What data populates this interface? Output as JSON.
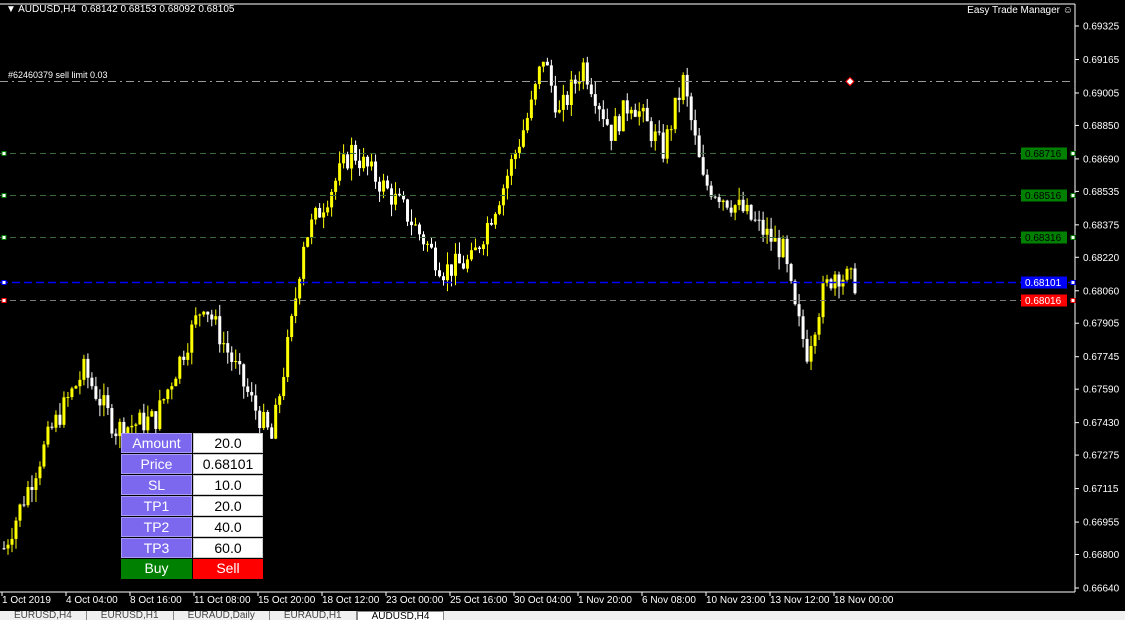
{
  "header": {
    "symbol": "AUDUSD,H4",
    "open": "0.68142",
    "high": "0.68153",
    "low": "0.68092",
    "close": "0.68105"
  },
  "indicator_title": "Easy Trade Manager",
  "order_label": "#62460379 sell limit 0.03",
  "colors": {
    "bull": "#ffff00",
    "bear": "#ffffff",
    "tp": "#008000",
    "entry": "#0000ff",
    "sl": "#ff0000",
    "axis": "#ffffff"
  },
  "chart_data": {
    "type": "candlestick",
    "price_ticks": [
      "0.69325",
      "0.69165",
      "0.69005",
      "0.68850",
      "0.68690",
      "0.68535",
      "0.68375",
      "0.68220",
      "0.68060",
      "0.67905",
      "0.67745",
      "0.67590",
      "0.67430",
      "0.67275",
      "0.67115",
      "0.66955",
      "0.66800",
      "0.66640"
    ],
    "time_ticks": [
      "1 Oct 2019",
      "4 Oct 04:00",
      "8 Oct 16:00",
      "11 Oct 08:00",
      "15 Oct 20:00",
      "18 Oct 12:00",
      "23 Oct 00:00",
      "25 Oct 16:00",
      "30 Oct 04:00",
      "1 Nov 20:00",
      "6 Nov 08:00",
      "10 Nov 23:00",
      "13 Nov 12:00",
      "18 Nov 00:00"
    ],
    "ylim": [
      0.666,
      0.6945
    ],
    "price_path": [
      [
        0,
        0.6683
      ],
      [
        12,
        0.674
      ],
      [
        20,
        0.6768
      ],
      [
        28,
        0.674
      ],
      [
        38,
        0.6745
      ],
      [
        50,
        0.6801
      ],
      [
        62,
        0.6753
      ],
      [
        67,
        0.6735
      ],
      [
        72,
        0.679
      ],
      [
        75,
        0.683
      ],
      [
        87,
        0.6873
      ],
      [
        100,
        0.6845
      ],
      [
        110,
        0.6816
      ],
      [
        117,
        0.682
      ],
      [
        125,
        0.6856
      ],
      [
        132,
        0.6894
      ],
      [
        135,
        0.6918
      ],
      [
        139,
        0.689
      ],
      [
        145,
        0.6914
      ],
      [
        152,
        0.6882
      ],
      [
        157,
        0.6897
      ],
      [
        165,
        0.6873
      ],
      [
        170,
        0.6906
      ],
      [
        175,
        0.6858
      ],
      [
        185,
        0.6844
      ],
      [
        195,
        0.6825
      ],
      [
        198,
        0.6796
      ],
      [
        201,
        0.6777
      ],
      [
        205,
        0.6805
      ],
      [
        208,
        0.6815
      ],
      [
        213,
        0.681
      ]
    ],
    "levels": [
      {
        "name": "sell-limit",
        "price": "0.69062",
        "label": ""
      },
      {
        "name": "tp3",
        "price": "0.68716",
        "label": "0.68716"
      },
      {
        "name": "tp2",
        "price": "0.68516",
        "label": "0.68516"
      },
      {
        "name": "tp1",
        "price": "0.68316",
        "label": "0.68316"
      },
      {
        "name": "entry",
        "price": "0.68101",
        "label": "0.68101"
      },
      {
        "name": "sl",
        "price": "0.68016",
        "label": "0.68016"
      }
    ]
  },
  "panel": {
    "rows": [
      {
        "label": "Amount",
        "value": "20.0"
      },
      {
        "label": "Price",
        "value": "0.68101"
      },
      {
        "label": "SL",
        "value": "10.0"
      },
      {
        "label": "TP1",
        "value": "20.0"
      },
      {
        "label": "TP2",
        "value": "40.0"
      },
      {
        "label": "TP3",
        "value": "60.0"
      }
    ],
    "buy": "Buy",
    "sell": "Sell"
  },
  "tabs": [
    "EURUSD,H4",
    "EURUSD,H1",
    "EURAUD,Daily",
    "EURAUD,H1",
    "AUDUSD,H4"
  ]
}
